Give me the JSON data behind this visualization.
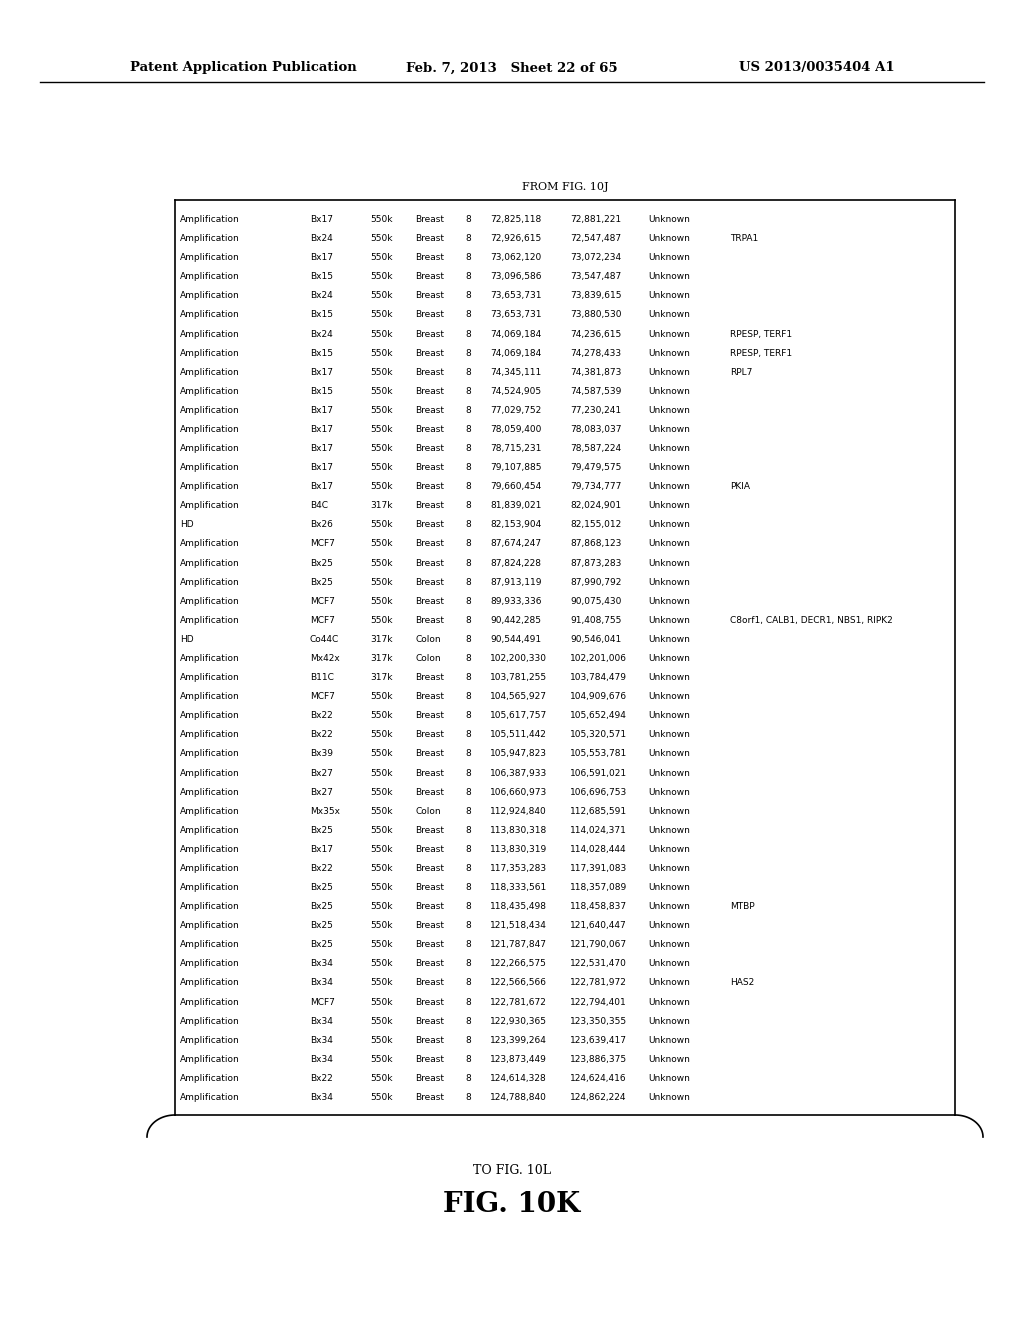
{
  "header_left": "Patent Application Publication",
  "header_center": "Feb. 7, 2013   Sheet 22 of 65",
  "header_right": "US 2013/0035404 A1",
  "from_label": "FROM FIG. 10J",
  "to_label": "TO FIG. 10L",
  "fig_label": "FIG. 10K",
  "rows": [
    [
      "Amplification",
      "Bx17",
      "550k",
      "Breast",
      "8",
      "72,825,118",
      "72,881,221",
      "Unknown",
      ""
    ],
    [
      "Amplification",
      "Bx24",
      "550k",
      "Breast",
      "8",
      "72,926,615",
      "72,547,487",
      "Unknown",
      "TRPA1"
    ],
    [
      "Amplification",
      "Bx17",
      "550k",
      "Breast",
      "8",
      "73,062,120",
      "73,072,234",
      "Unknown",
      ""
    ],
    [
      "Amplification",
      "Bx15",
      "550k",
      "Breast",
      "8",
      "73,096,586",
      "73,547,487",
      "Unknown",
      ""
    ],
    [
      "Amplification",
      "Bx24",
      "550k",
      "Breast",
      "8",
      "73,653,731",
      "73,839,615",
      "Unknown",
      ""
    ],
    [
      "Amplification",
      "Bx15",
      "550k",
      "Breast",
      "8",
      "73,653,731",
      "73,880,530",
      "Unknown",
      ""
    ],
    [
      "Amplification",
      "Bx24",
      "550k",
      "Breast",
      "8",
      "74,069,184",
      "74,236,615",
      "Unknown",
      "RPESP, TERF1"
    ],
    [
      "Amplification",
      "Bx15",
      "550k",
      "Breast",
      "8",
      "74,069,184",
      "74,278,433",
      "Unknown",
      "RPESP, TERF1"
    ],
    [
      "Amplification",
      "Bx17",
      "550k",
      "Breast",
      "8",
      "74,345,111",
      "74,381,873",
      "Unknown",
      "RPL7"
    ],
    [
      "Amplification",
      "Bx15",
      "550k",
      "Breast",
      "8",
      "74,524,905",
      "74,587,539",
      "Unknown",
      ""
    ],
    [
      "Amplification",
      "Bx17",
      "550k",
      "Breast",
      "8",
      "77,029,752",
      "77,230,241",
      "Unknown",
      ""
    ],
    [
      "Amplification",
      "Bx17",
      "550k",
      "Breast",
      "8",
      "78,059,400",
      "78,083,037",
      "Unknown",
      ""
    ],
    [
      "Amplification",
      "Bx17",
      "550k",
      "Breast",
      "8",
      "78,715,231",
      "78,587,224",
      "Unknown",
      ""
    ],
    [
      "Amplification",
      "Bx17",
      "550k",
      "Breast",
      "8",
      "79,107,885",
      "79,479,575",
      "Unknown",
      ""
    ],
    [
      "Amplification",
      "Bx17",
      "550k",
      "Breast",
      "8",
      "79,660,454",
      "79,734,777",
      "Unknown",
      "PKIA"
    ],
    [
      "Amplification",
      "B4C",
      "317k",
      "Breast",
      "8",
      "81,839,021",
      "82,024,901",
      "Unknown",
      ""
    ],
    [
      "HD",
      "Bx26",
      "550k",
      "Breast",
      "8",
      "82,153,904",
      "82,155,012",
      "Unknown",
      ""
    ],
    [
      "Amplification",
      "MCF7",
      "550k",
      "Breast",
      "8",
      "87,674,247",
      "87,868,123",
      "Unknown",
      ""
    ],
    [
      "Amplification",
      "Bx25",
      "550k",
      "Breast",
      "8",
      "87,824,228",
      "87,873,283",
      "Unknown",
      ""
    ],
    [
      "Amplification",
      "Bx25",
      "550k",
      "Breast",
      "8",
      "87,913,119",
      "87,990,792",
      "Unknown",
      ""
    ],
    [
      "Amplification",
      "MCF7",
      "550k",
      "Breast",
      "8",
      "89,933,336",
      "90,075,430",
      "Unknown",
      ""
    ],
    [
      "Amplification",
      "MCF7",
      "550k",
      "Breast",
      "8",
      "90,442,285",
      "91,408,755",
      "Unknown",
      "C8orf1, CALB1, DECR1, NBS1, RIPK2"
    ],
    [
      "HD",
      "Co44C",
      "317k",
      "Colon",
      "8",
      "90,544,491",
      "90,546,041",
      "Unknown",
      ""
    ],
    [
      "Amplification",
      "Mx42x",
      "317k",
      "Colon",
      "8",
      "102,200,330",
      "102,201,006",
      "Unknown",
      ""
    ],
    [
      "Amplification",
      "B11C",
      "317k",
      "Breast",
      "8",
      "103,781,255",
      "103,784,479",
      "Unknown",
      ""
    ],
    [
      "Amplification",
      "MCF7",
      "550k",
      "Breast",
      "8",
      "104,565,927",
      "104,909,676",
      "Unknown",
      ""
    ],
    [
      "Amplification",
      "Bx22",
      "550k",
      "Breast",
      "8",
      "105,617,757",
      "105,652,494",
      "Unknown",
      ""
    ],
    [
      "Amplification",
      "Bx22",
      "550k",
      "Breast",
      "8",
      "105,511,442",
      "105,320,571",
      "Unknown",
      ""
    ],
    [
      "Amplification",
      "Bx39",
      "550k",
      "Breast",
      "8",
      "105,947,823",
      "105,553,781",
      "Unknown",
      ""
    ],
    [
      "Amplification",
      "Bx27",
      "550k",
      "Breast",
      "8",
      "106,387,933",
      "106,591,021",
      "Unknown",
      ""
    ],
    [
      "Amplification",
      "Bx27",
      "550k",
      "Breast",
      "8",
      "106,660,973",
      "106,696,753",
      "Unknown",
      ""
    ],
    [
      "Amplification",
      "Mx35x",
      "550k",
      "Colon",
      "8",
      "112,924,840",
      "112,685,591",
      "Unknown",
      ""
    ],
    [
      "Amplification",
      "Bx25",
      "550k",
      "Breast",
      "8",
      "113,830,318",
      "114,024,371",
      "Unknown",
      ""
    ],
    [
      "Amplification",
      "Bx17",
      "550k",
      "Breast",
      "8",
      "113,830,319",
      "114,028,444",
      "Unknown",
      ""
    ],
    [
      "Amplification",
      "Bx22",
      "550k",
      "Breast",
      "8",
      "117,353,283",
      "117,391,083",
      "Unknown",
      ""
    ],
    [
      "Amplification",
      "Bx25",
      "550k",
      "Breast",
      "8",
      "118,333,561",
      "118,357,089",
      "Unknown",
      ""
    ],
    [
      "Amplification",
      "Bx25",
      "550k",
      "Breast",
      "8",
      "118,435,498",
      "118,458,837",
      "Unknown",
      "MTBP"
    ],
    [
      "Amplification",
      "Bx25",
      "550k",
      "Breast",
      "8",
      "121,518,434",
      "121,640,447",
      "Unknown",
      ""
    ],
    [
      "Amplification",
      "Bx25",
      "550k",
      "Breast",
      "8",
      "121,787,847",
      "121,790,067",
      "Unknown",
      ""
    ],
    [
      "Amplification",
      "Bx34",
      "550k",
      "Breast",
      "8",
      "122,266,575",
      "122,531,470",
      "Unknown",
      ""
    ],
    [
      "Amplification",
      "Bx34",
      "550k",
      "Breast",
      "8",
      "122,566,566",
      "122,781,972",
      "Unknown",
      "HAS2"
    ],
    [
      "Amplification",
      "MCF7",
      "550k",
      "Breast",
      "8",
      "122,781,672",
      "122,794,401",
      "Unknown",
      ""
    ],
    [
      "Amplification",
      "Bx34",
      "550k",
      "Breast",
      "8",
      "122,930,365",
      "123,350,355",
      "Unknown",
      ""
    ],
    [
      "Amplification",
      "Bx34",
      "550k",
      "Breast",
      "8",
      "123,399,264",
      "123,639,417",
      "Unknown",
      ""
    ],
    [
      "Amplification",
      "Bx34",
      "550k",
      "Breast",
      "8",
      "123,873,449",
      "123,886,375",
      "Unknown",
      ""
    ],
    [
      "Amplification",
      "Bx22",
      "550k",
      "Breast",
      "8",
      "124,614,328",
      "124,624,416",
      "Unknown",
      ""
    ],
    [
      "Amplification",
      "Bx34",
      "550k",
      "Breast",
      "8",
      "124,788,840",
      "124,862,224",
      "Unknown",
      ""
    ]
  ],
  "bg_color": "#ffffff",
  "text_color": "#000000",
  "font_size": 6.5,
  "header_font_size": 9.5,
  "fig_label_font_size": 20,
  "to_fig_font_size": 9,
  "from_fig_font_size": 8
}
